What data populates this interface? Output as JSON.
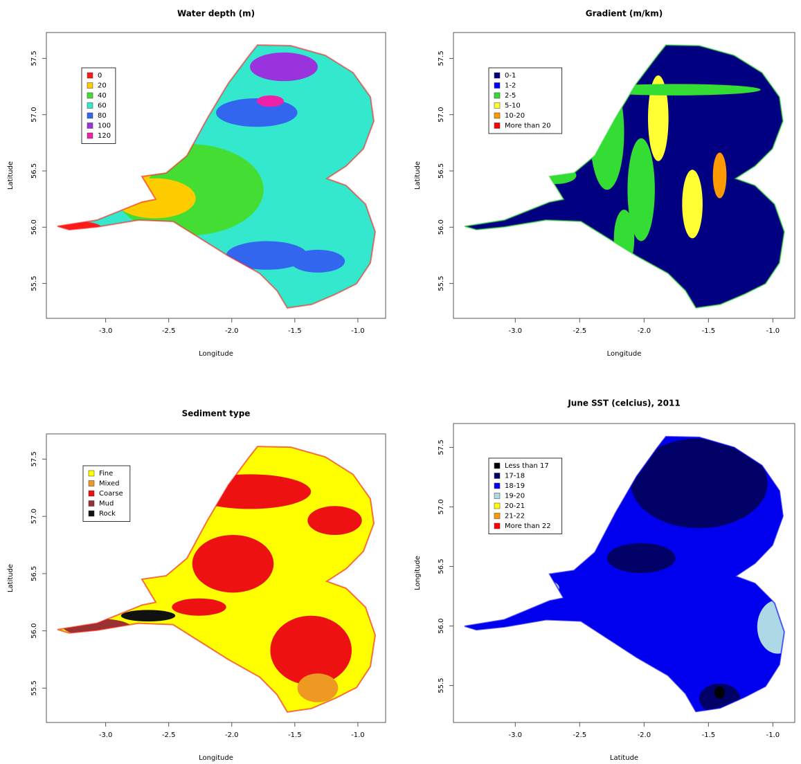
{
  "chart_data": [
    {
      "type": "map",
      "title": "Water depth (m)",
      "x_label": "Longitude",
      "y_label": "Latitude",
      "xlim": [
        -3.47,
        -0.78
      ],
      "ylim": [
        55.19,
        57.73
      ],
      "xticks": [
        {
          "value": -3,
          "label": "-3.0"
        },
        -2.5,
        {
          "value": -2,
          "label": "-2.0"
        },
        -1.5,
        {
          "value": -1,
          "label": "-1.0"
        }
      ],
      "yticks": [
        55.5,
        {
          "value": 56,
          "label": "56.0"
        },
        56.5,
        {
          "value": 57,
          "label": "57.0"
        },
        57.5
      ],
      "series": [
        {
          "name": "0",
          "color": "#ff1a1a"
        },
        {
          "name": "20",
          "color": "#ffcc00"
        },
        {
          "name": "40",
          "color": "#44dd33"
        },
        {
          "name": "60",
          "color": "#33e8cc"
        },
        {
          "name": "80",
          "color": "#3366ee"
        },
        {
          "name": "100",
          "color": "#9933dd"
        },
        {
          "name": "120",
          "color": "#ee22aa"
        }
      ]
    },
    {
      "type": "map",
      "title": "Gradient (m/km)",
      "x_label": "Longitude",
      "y_label": "Latitude",
      "xlim": [
        -3.48,
        -0.83
      ],
      "ylim": [
        55.19,
        57.73
      ],
      "xticks": [
        {
          "value": -3,
          "label": "-3.0"
        },
        -2.5,
        {
          "value": -2,
          "label": "-2.0"
        },
        -1.5,
        {
          "value": -1,
          "label": "-1.0"
        }
      ],
      "yticks": [
        55.5,
        {
          "value": 56,
          "label": "56.0"
        },
        56.5,
        {
          "value": 57,
          "label": "57.0"
        },
        57.5
      ],
      "series": [
        {
          "name": "0-1",
          "color": "#000080"
        },
        {
          "name": "1-2",
          "color": "#0000ff"
        },
        {
          "name": "2-5",
          "color": "#33dd33"
        },
        {
          "name": "5-10",
          "color": "#ffff33"
        },
        {
          "name": "10-20",
          "color": "#ff9900"
        },
        {
          "name": "More than 20",
          "color": "#ff0000"
        }
      ]
    },
    {
      "type": "map",
      "title": "Sediment type",
      "x_label": "Longitude",
      "y_label": "Latitude",
      "xlim": [
        -3.47,
        -0.78
      ],
      "ylim": [
        55.2,
        57.72
      ],
      "xticks": [
        {
          "value": -3,
          "label": "-3.0"
        },
        -2.5,
        {
          "value": -2,
          "label": "-2.0"
        },
        -1.5,
        {
          "value": -1,
          "label": "-1.0"
        }
      ],
      "yticks": [
        55.5,
        {
          "value": 56,
          "label": "56.0"
        },
        56.5,
        {
          "value": 57,
          "label": "57.0"
        },
        57.5
      ],
      "series": [
        {
          "name": "Fine",
          "color": "#ffff00"
        },
        {
          "name": "Mixed",
          "color": "#ee9922"
        },
        {
          "name": "Coarse",
          "color": "#ee1111"
        },
        {
          "name": "Mud",
          "color": "#993333"
        },
        {
          "name": "Rock",
          "color": "#111111"
        }
      ]
    },
    {
      "type": "map",
      "title": "June SST (celcius), 2011",
      "x_label": "Latitude",
      "y_label": "Longitude",
      "xlim": [
        -3.48,
        -0.83
      ],
      "ylim": [
        55.19,
        57.7
      ],
      "xticks": [
        {
          "value": -3,
          "label": "-3.0"
        },
        -2.5,
        {
          "value": -2,
          "label": "-2.0"
        },
        -1.5,
        {
          "value": -1,
          "label": "-1.0"
        }
      ],
      "yticks": [
        55.5,
        {
          "value": 56,
          "label": "56.0"
        },
        56.5,
        {
          "value": 57,
          "label": "57.0"
        },
        57.5
      ],
      "series": [
        {
          "name": "Less than 17",
          "color": "#000000"
        },
        {
          "name": "17-18",
          "color": "#000066"
        },
        {
          "name": "18-19",
          "color": "#0000ee"
        },
        {
          "name": "19-20",
          "color": "#add8e6"
        },
        {
          "name": "20-21",
          "color": "#ffff00"
        },
        {
          "name": "21-22",
          "color": "#ff9900"
        },
        {
          "name": "More than 22",
          "color": "#ff0000"
        }
      ]
    }
  ]
}
